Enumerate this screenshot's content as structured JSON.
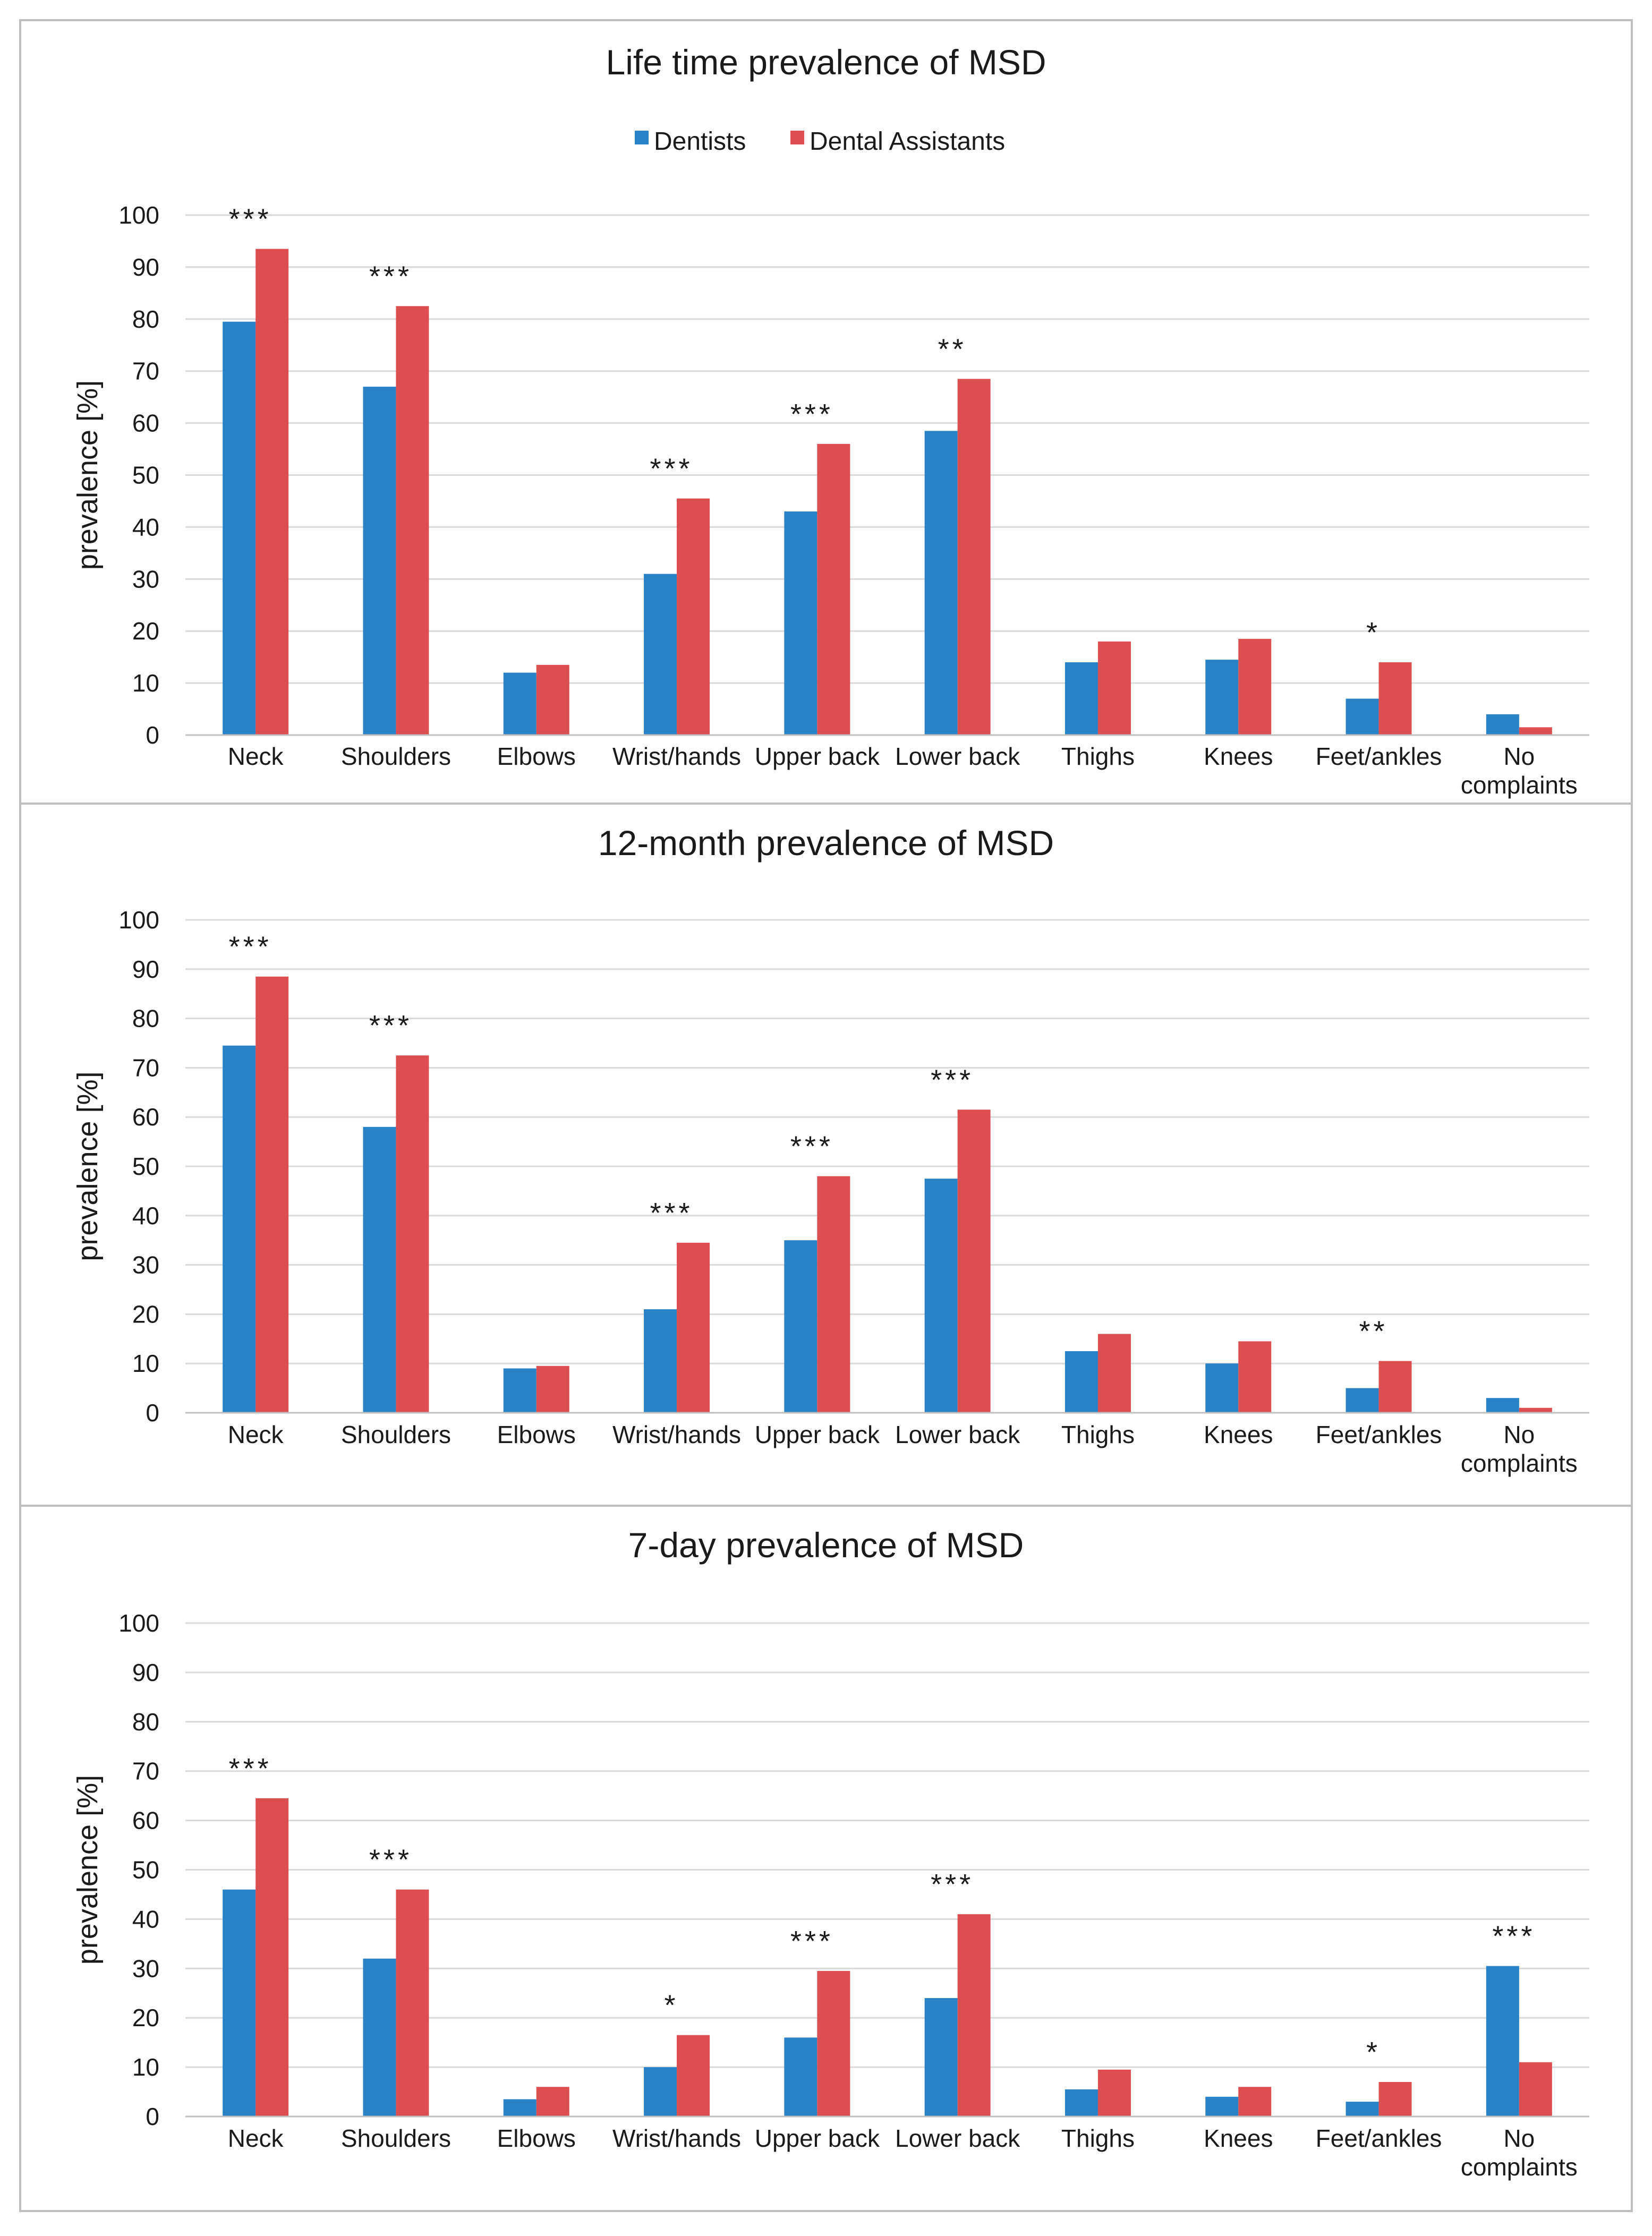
{
  "figure": {
    "legend": {
      "series": [
        {
          "name": "Dentists",
          "color": "#2a82c6"
        },
        {
          "name": "Dental Assistants",
          "color": "#dd4e51"
        }
      ]
    }
  },
  "chart_data": [
    {
      "type": "bar",
      "title": "Life time prevalence of MSD",
      "ylabel": "prevalence [%]",
      "xlabel": "",
      "ylim": [
        0,
        100
      ],
      "yticks": [
        "0",
        "10",
        "20",
        "30",
        "40",
        "50",
        "60",
        "70",
        "80",
        "90",
        "100"
      ],
      "grid": true,
      "legend_position": "top-center",
      "categories": [
        "Neck",
        "Shoulders",
        "Elbows",
        "Wrist/hands",
        "Upper back",
        "Lower back",
        "Thighs",
        "Knees",
        "Feet/ankles",
        "No complaints"
      ],
      "series": [
        {
          "name": "Dentists",
          "color": "#2a82c6",
          "values": [
            79.5,
            67.0,
            12.0,
            31.0,
            43.0,
            58.5,
            14.0,
            14.5,
            7.0,
            4.0
          ]
        },
        {
          "name": "Dental Assistants",
          "color": "#dd4e51",
          "values": [
            93.5,
            82.5,
            13.5,
            45.5,
            56.0,
            68.5,
            18.0,
            18.5,
            14.0,
            1.5
          ]
        }
      ],
      "annotations": [
        "***",
        "***",
        "",
        "***",
        "***",
        "**",
        "",
        "",
        "*",
        ""
      ]
    },
    {
      "type": "bar",
      "title": "12-month prevalence of MSD",
      "ylabel": "prevalence [%]",
      "xlabel": "",
      "ylim": [
        0,
        100
      ],
      "yticks": [
        "0",
        "10",
        "20",
        "30",
        "40",
        "50",
        "60",
        "70",
        "80",
        "90",
        "100"
      ],
      "grid": true,
      "categories": [
        "Neck",
        "Shoulders",
        "Elbows",
        "Wrist/hands",
        "Upper back",
        "Lower back",
        "Thighs",
        "Knees",
        "Feet/ankles",
        "No complaints"
      ],
      "series": [
        {
          "name": "Dentists",
          "color": "#2a82c6",
          "values": [
            74.5,
            58.0,
            9.0,
            21.0,
            35.0,
            47.5,
            12.5,
            10.0,
            5.0,
            3.0
          ]
        },
        {
          "name": "Dental Assistants",
          "color": "#dd4e51",
          "values": [
            88.5,
            72.5,
            9.5,
            34.5,
            48.0,
            61.5,
            16.0,
            14.5,
            10.5,
            1.0
          ]
        }
      ],
      "annotations": [
        "***",
        "***",
        "",
        "***",
        "***",
        "***",
        "",
        "",
        "**",
        ""
      ]
    },
    {
      "type": "bar",
      "title": "7-day prevalence of MSD",
      "ylabel": "prevalence [%]",
      "xlabel": "",
      "ylim": [
        0,
        100
      ],
      "yticks": [
        "0",
        "10",
        "20",
        "30",
        "40",
        "50",
        "60",
        "70",
        "80",
        "90",
        "100"
      ],
      "grid": true,
      "categories": [
        "Neck",
        "Shoulders",
        "Elbows",
        "Wrist/hands",
        "Upper back",
        "Lower back",
        "Thighs",
        "Knees",
        "Feet/ankles",
        "No complaints"
      ],
      "series": [
        {
          "name": "Dentists",
          "color": "#2a82c6",
          "values": [
            46.0,
            32.0,
            3.5,
            10.0,
            16.0,
            24.0,
            5.5,
            4.0,
            3.0,
            30.5
          ]
        },
        {
          "name": "Dental Assistants",
          "color": "#dd4e51",
          "values": [
            64.5,
            46.0,
            6.0,
            16.5,
            29.5,
            41.0,
            9.5,
            6.0,
            7.0,
            11.0
          ]
        }
      ],
      "annotations": [
        "***",
        "***",
        "",
        "*",
        "***",
        "***",
        "",
        "",
        "*",
        "***"
      ]
    }
  ]
}
